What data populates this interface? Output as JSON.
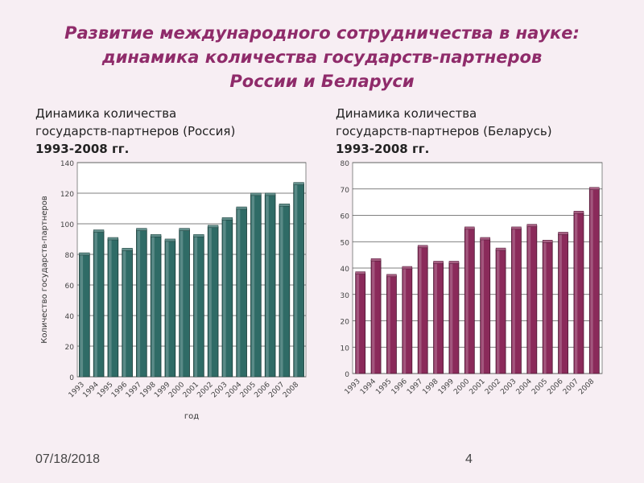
{
  "slide": {
    "title_lines": [
      "Развитие международного сотрудничества в науке:",
      "динамика количества государств-партнеров",
      "России и Беларуси"
    ],
    "date": "07/18/2018",
    "page_number": "4"
  },
  "chart_data": [
    {
      "type": "bar",
      "title_lines": [
        "Динамика количества",
        "государств-партнеров (Россия)",
        "1993-2008 гг."
      ],
      "xlabel": "год",
      "ylabel": "Количество государств-партнеров",
      "categories": [
        "1993",
        "1994",
        "1995",
        "1996",
        "1997",
        "1998",
        "1999",
        "2000",
        "2001",
        "2002",
        "2003",
        "2004",
        "2005",
        "2006",
        "2007",
        "2008"
      ],
      "values": [
        80,
        95,
        90,
        83,
        96,
        92,
        89,
        96,
        92,
        98,
        103,
        110,
        119,
        119,
        112,
        126
      ],
      "ylim": [
        0,
        140
      ],
      "yticks": [
        "0",
        "20",
        "40",
        "60",
        "80",
        "100",
        "120",
        "140"
      ],
      "bar_color": "#2f6b66",
      "grid": true,
      "legend": "none"
    },
    {
      "type": "bar",
      "title_lines": [
        "Динамика количества",
        "государств-партнеров (Беларусь)",
        "1993-2008 гг."
      ],
      "categories": [
        "1993",
        "1994",
        "1995",
        "1996",
        "1997",
        "1998",
        "1999",
        "2000",
        "2001",
        "2002",
        "2003",
        "2004",
        "2005",
        "2006",
        "2007",
        "2008"
      ],
      "values": [
        38,
        43,
        37,
        40,
        48,
        42,
        42,
        55,
        51,
        47,
        55,
        56,
        50,
        53,
        61,
        70
      ],
      "ylim": [
        0,
        80
      ],
      "yticks": [
        "0",
        "10",
        "20",
        "30",
        "40",
        "50",
        "60",
        "70",
        "80"
      ],
      "bar_color": "#8a2a5a",
      "grid": true,
      "legend": "none"
    }
  ]
}
